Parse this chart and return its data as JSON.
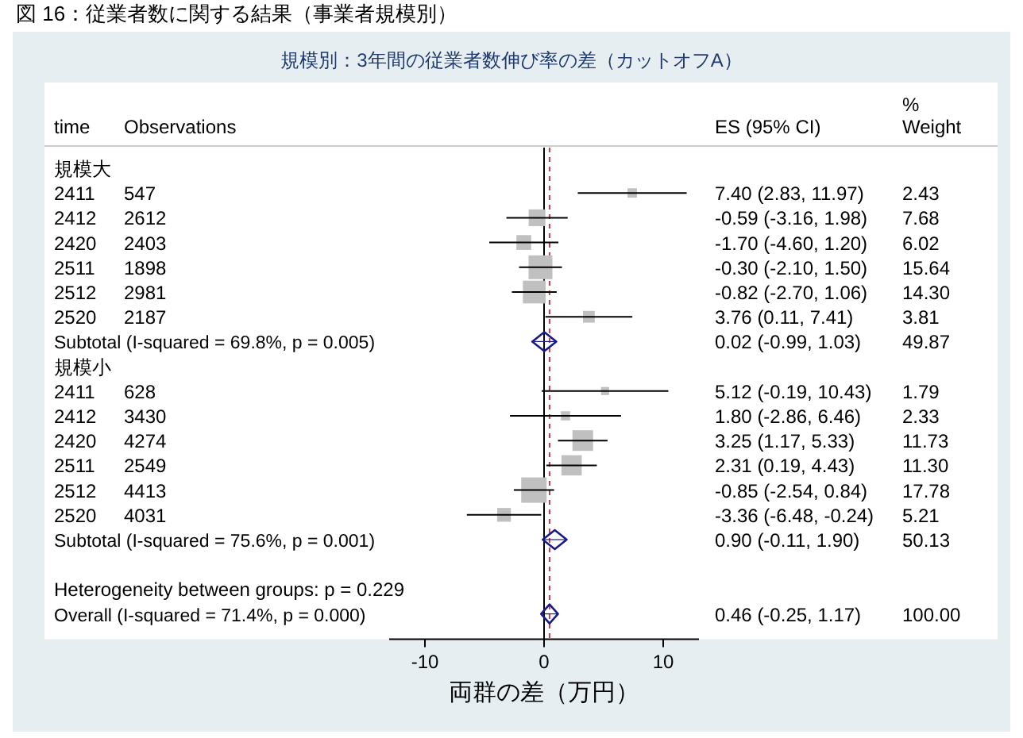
{
  "chart_data": {
    "type": "scatter",
    "orientation": "horizontal",
    "title": "図 16：従業者数に関する結果（事業者規模別）",
    "subtitle": "規模別：3年間の従業者数伸び率の差（カットオフA）",
    "xlabel": "両群の差（万円）",
    "annotations": [
      "time",
      "Observations",
      "ES (95% CI)",
      "%",
      "Weight",
      "7.40 (2.83, 11.97)",
      "-0.59 (-3.16, 1.98)",
      "-1.70 (-4.60, 1.20)",
      "-0.30 (-2.10, 1.50)",
      "-0.82 (-2.70, 1.06)",
      "3.76 (0.11, 7.41)",
      "0.02 (-0.99, 1.03)",
      "5.12 (-0.19, 10.43)",
      "1.80 (-2.86, 6.46)",
      "3.25 (1.17, 5.33)",
      "2.31 (0.19, 4.43)",
      "-0.85 (-2.54, 0.84)",
      "-3.36 (-6.48, -0.24)",
      "0.90 (-0.11, 1.90)",
      "0.46 (-0.25, 1.17)",
      "2.43",
      "7.68",
      "6.02",
      "15.64",
      "14.30",
      "3.81",
      "49.87",
      "1.79",
      "2.33",
      "11.73",
      "11.30",
      "17.78",
      "5.21",
      "50.13",
      "100.00"
    ],
    "categories": [
      "規模大",
      "2411 547",
      "2412 2612",
      "2420 2403",
      "2511 1898",
      "2512 2981",
      "2520 2187",
      "Subtotal  (I-squared = 69.8%, p = 0.005)",
      "規模小",
      "2411 628",
      "2412 3430",
      "2420 4274",
      "2511 2549",
      "2512 4413",
      "2520 4031",
      "Subtotal  (I-squared = 75.6%, p = 0.001)",
      null,
      "Heterogeneity between groups: p = 0.229",
      "Overall  (I-squared = 71.4%, p = 0.000)"
    ],
    "xlim": [
      -13,
      13
    ],
    "xticks": [
      -10,
      0,
      10
    ],
    "series": [
      {
        "marker": "square",
        "color": "#c0c0c0",
        "values": [
          null,
          7.4,
          -0.59,
          -1.7,
          -0.3,
          -0.82,
          3.76,
          null,
          null,
          5.12,
          1.8,
          3.25,
          2.31,
          -0.85,
          -3.36,
          null,
          null,
          null,
          null
        ],
        "errors": [
          null,
          [
            2.83,
            11.97
          ],
          [
            -3.16,
            1.98
          ],
          [
            -4.6,
            1.2
          ],
          [
            -2.1,
            1.5
          ],
          [
            -2.7,
            1.06
          ],
          [
            0.11,
            7.41
          ],
          null,
          null,
          [
            -0.19,
            10.43
          ],
          [
            -2.86,
            6.46
          ],
          [
            1.17,
            5.33
          ],
          [
            0.19,
            4.43
          ],
          [
            -2.54,
            0.84
          ],
          [
            -6.48,
            -0.24
          ],
          null,
          null,
          null,
          null
        ],
        "sizes": [
          null,
          0.137,
          0.432,
          0.339,
          0.88,
          0.804,
          0.214,
          null,
          null,
          0.101,
          0.131,
          0.66,
          0.636,
          1,
          0.293,
          null,
          null,
          null,
          null
        ]
      },
      {
        "marker": "diamond",
        "color": "#1a1a8c",
        "values": [
          null,
          null,
          null,
          null,
          null,
          null,
          null,
          0.02,
          null,
          null,
          null,
          null,
          null,
          null,
          null,
          0.9,
          null,
          null,
          0.46
        ],
        "errors": [
          null,
          null,
          null,
          null,
          null,
          null,
          null,
          [
            -0.99,
            1.03
          ],
          null,
          null,
          null,
          null,
          null,
          null,
          null,
          [
            -0.11,
            1.9
          ],
          null,
          null,
          [
            -0.25,
            1.17
          ]
        ]
      }
    ],
    "ref_lines": [
      {
        "axis": "x",
        "value": 0,
        "color": "#000000",
        "line_style": "solid"
      },
      {
        "axis": "x",
        "value": 0.46,
        "color": "#c04050",
        "line_style": "dashed"
      }
    ]
  }
}
